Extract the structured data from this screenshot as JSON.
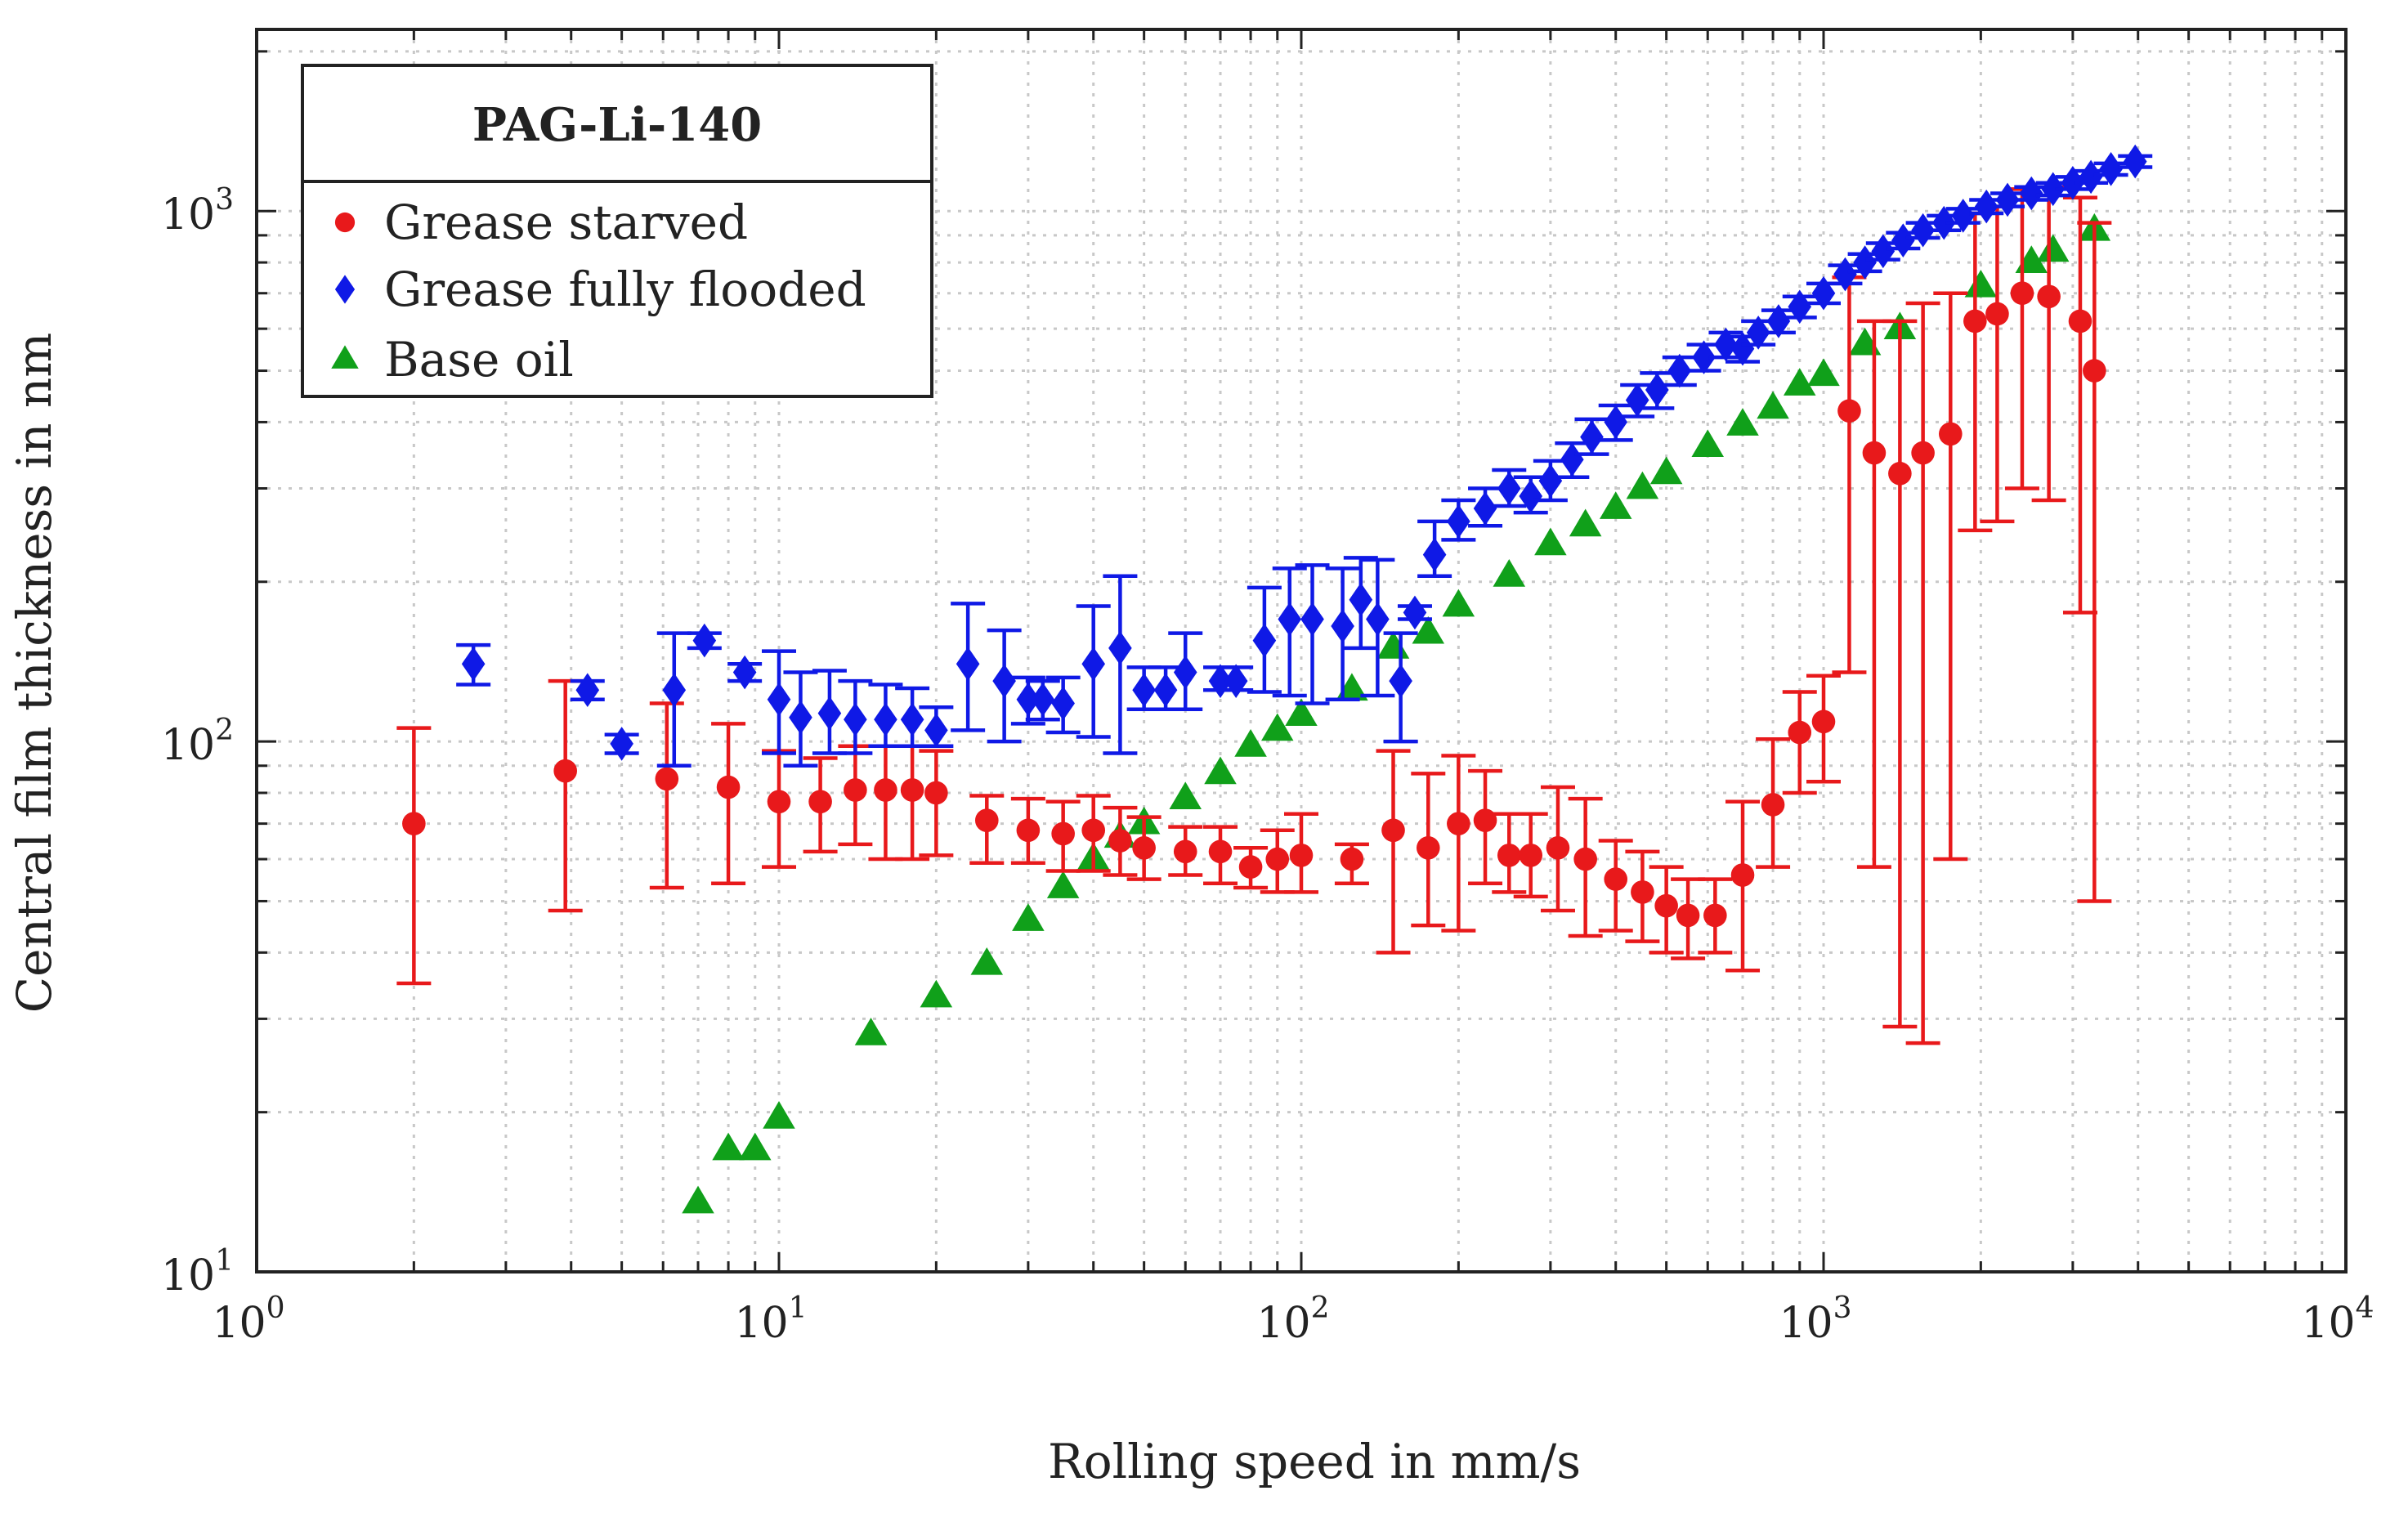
{
  "chart_data": {
    "type": "scatter",
    "title": "PAG-Li-140",
    "xlabel": "Rolling speed in mm/s",
    "ylabel": "Central film thickness in nm",
    "xscale": "log",
    "yscale": "log",
    "xlim": [
      1,
      10000
    ],
    "ylim": [
      10,
      2200
    ],
    "grid": true,
    "legend_position": "top-left",
    "x_ticks": [
      {
        "base": "10",
        "exp": "0",
        "value": 1
      },
      {
        "base": "10",
        "exp": "1",
        "value": 10
      },
      {
        "base": "10",
        "exp": "2",
        "value": 100
      },
      {
        "base": "10",
        "exp": "3",
        "value": 1000
      },
      {
        "base": "10",
        "exp": "4",
        "value": 10000
      }
    ],
    "y_ticks": [
      {
        "base": "10",
        "exp": "1",
        "value": 10
      },
      {
        "base": "10",
        "exp": "2",
        "value": 100
      },
      {
        "base": "10",
        "exp": "3",
        "value": 1000
      }
    ],
    "series": [
      {
        "name": "Grease starved",
        "color": "#e8191b",
        "marker": "circle",
        "points": [
          [
            2,
            70,
            35,
            106
          ],
          [
            3.9,
            88,
            48,
            130
          ],
          [
            6.1,
            85,
            53,
            118
          ],
          [
            8,
            82,
            54,
            108
          ],
          [
            10,
            77,
            58,
            96
          ],
          [
            12,
            77,
            62,
            93
          ],
          [
            14,
            81,
            64,
            98
          ],
          [
            16,
            81,
            60,
            98
          ],
          [
            18,
            81,
            60,
            98
          ],
          [
            20,
            80,
            61,
            96
          ],
          [
            25,
            71,
            59,
            79
          ],
          [
            30,
            68,
            59,
            78
          ],
          [
            35,
            67,
            57,
            77
          ],
          [
            40,
            68,
            57,
            79
          ],
          [
            45,
            65,
            56,
            75
          ],
          [
            50,
            63,
            55,
            72
          ],
          [
            60,
            62,
            56,
            69
          ],
          [
            70,
            62,
            54,
            69
          ],
          [
            80,
            58,
            53,
            63
          ],
          [
            90,
            60,
            52,
            68
          ],
          [
            100,
            61,
            52,
            73
          ],
          [
            125,
            60,
            54,
            64
          ],
          [
            150,
            68,
            40,
            96
          ],
          [
            175,
            63,
            45,
            87
          ],
          [
            200,
            70,
            44,
            94
          ],
          [
            225,
            71,
            54,
            88
          ],
          [
            250,
            61,
            52,
            73
          ],
          [
            275,
            61,
            51,
            73
          ],
          [
            310,
            63,
            48,
            82
          ],
          [
            350,
            60,
            43,
            78
          ],
          [
            400,
            55,
            44,
            65
          ],
          [
            450,
            52,
            42,
            62
          ],
          [
            500,
            49,
            40,
            58
          ],
          [
            550,
            47,
            39,
            55
          ],
          [
            620,
            47,
            40,
            55
          ],
          [
            700,
            56,
            37,
            77
          ],
          [
            800,
            76,
            58,
            101
          ],
          [
            900,
            104,
            80,
            124
          ],
          [
            1000,
            109,
            84,
            133
          ],
          [
            1120,
            420,
            135,
            750
          ],
          [
            1250,
            350,
            58,
            620
          ],
          [
            1400,
            320,
            29,
            620
          ],
          [
            1550,
            350,
            27,
            670
          ],
          [
            1750,
            380,
            60,
            700
          ],
          [
            1950,
            620,
            250,
            990
          ],
          [
            2150,
            640,
            260,
            1020
          ],
          [
            2400,
            700,
            300,
            1100
          ],
          [
            2700,
            690,
            285,
            1110
          ],
          [
            3100,
            620,
            175,
            1060
          ],
          [
            3300,
            500,
            50,
            950
          ]
        ]
      },
      {
        "name": "Grease fully flooded",
        "color": "#0f19e6",
        "marker": "diamond",
        "points": [
          [
            2.6,
            140,
            128,
            152
          ],
          [
            4.3,
            125,
            120,
            130
          ],
          [
            5,
            99,
            95,
            103
          ],
          [
            6.3,
            125,
            90,
            160
          ],
          [
            7.2,
            155,
            150,
            160
          ],
          [
            8.6,
            135,
            130,
            140
          ],
          [
            10,
            120,
            95,
            148
          ],
          [
            11,
            111,
            90,
            135
          ],
          [
            12.5,
            113,
            95,
            136
          ],
          [
            14,
            110,
            95,
            130
          ],
          [
            16,
            110,
            98,
            128
          ],
          [
            18,
            110,
            98,
            126
          ],
          [
            20,
            105,
            98,
            116
          ],
          [
            23,
            140,
            105,
            182
          ],
          [
            27,
            130,
            100,
            162
          ],
          [
            30,
            120,
            108,
            132
          ],
          [
            32,
            120,
            110,
            130
          ],
          [
            35,
            118,
            104,
            132
          ],
          [
            40,
            140,
            102,
            180
          ],
          [
            45,
            150,
            95,
            205
          ],
          [
            50,
            125,
            115,
            138
          ],
          [
            55,
            125,
            115,
            138
          ],
          [
            60,
            135,
            115,
            160
          ],
          [
            70,
            130,
            125,
            138
          ],
          [
            75,
            130,
            125,
            138
          ],
          [
            85,
            155,
            124,
            195
          ],
          [
            95,
            170,
            122,
            212
          ],
          [
            105,
            170,
            118,
            215
          ],
          [
            120,
            165,
            120,
            212
          ],
          [
            130,
            185,
            150,
            222
          ],
          [
            140,
            170,
            122,
            220
          ],
          [
            155,
            130,
            100,
            160
          ],
          [
            165,
            175,
            170,
            180
          ],
          [
            180,
            225,
            205,
            260
          ],
          [
            200,
            260,
            240,
            285
          ],
          [
            225,
            275,
            255,
            300
          ],
          [
            250,
            300,
            278,
            325
          ],
          [
            275,
            290,
            270,
            315
          ],
          [
            300,
            310,
            285,
            338
          ],
          [
            330,
            340,
            315,
            365
          ],
          [
            360,
            375,
            348,
            405
          ],
          [
            400,
            400,
            370,
            430
          ],
          [
            440,
            440,
            410,
            470
          ],
          [
            480,
            460,
            425,
            495
          ],
          [
            530,
            500,
            470,
            530
          ],
          [
            590,
            530,
            500,
            560
          ],
          [
            650,
            560,
            530,
            590
          ],
          [
            700,
            550,
            520,
            580
          ],
          [
            750,
            590,
            560,
            620
          ],
          [
            820,
            620,
            590,
            650
          ],
          [
            900,
            660,
            630,
            690
          ],
          [
            1000,
            700,
            670,
            730
          ],
          [
            1100,
            760,
            730,
            790
          ],
          [
            1200,
            800,
            770,
            830
          ],
          [
            1300,
            840,
            810,
            870
          ],
          [
            1420,
            880,
            850,
            910
          ],
          [
            1550,
            920,
            890,
            950
          ],
          [
            1700,
            950,
            920,
            980
          ],
          [
            1850,
            980,
            950,
            1010
          ],
          [
            2050,
            1020,
            990,
            1050
          ],
          [
            2250,
            1050,
            1020,
            1080
          ],
          [
            2500,
            1080,
            1050,
            1110
          ],
          [
            2750,
            1100,
            1070,
            1130
          ],
          [
            3000,
            1130,
            1100,
            1160
          ],
          [
            3250,
            1160,
            1130,
            1190
          ],
          [
            3550,
            1200,
            1170,
            1230
          ],
          [
            3950,
            1240,
            1210,
            1270
          ]
        ]
      },
      {
        "name": "Base oil",
        "color": "#10a01a",
        "marker": "triangle",
        "points": [
          [
            7,
            13.5
          ],
          [
            8,
            17
          ],
          [
            9,
            17
          ],
          [
            10,
            19.5
          ],
          [
            15,
            28
          ],
          [
            20,
            33
          ],
          [
            25,
            38
          ],
          [
            30,
            46
          ],
          [
            35,
            53
          ],
          [
            40,
            60
          ],
          [
            45,
            66
          ],
          [
            50,
            70
          ],
          [
            60,
            78
          ],
          [
            70,
            87
          ],
          [
            80,
            98
          ],
          [
            90,
            105
          ],
          [
            100,
            112
          ],
          [
            125,
            125
          ],
          [
            150,
            150
          ],
          [
            175,
            160
          ],
          [
            200,
            180
          ],
          [
            250,
            205
          ],
          [
            300,
            235
          ],
          [
            350,
            255
          ],
          [
            400,
            275
          ],
          [
            450,
            300
          ],
          [
            500,
            320
          ],
          [
            600,
            360
          ],
          [
            700,
            395
          ],
          [
            800,
            425
          ],
          [
            900,
            470
          ],
          [
            1000,
            490
          ],
          [
            1200,
            560
          ],
          [
            1400,
            600
          ],
          [
            2000,
            720
          ],
          [
            2500,
            800
          ],
          [
            2750,
            840
          ],
          [
            3300,
            920
          ]
        ]
      }
    ]
  }
}
